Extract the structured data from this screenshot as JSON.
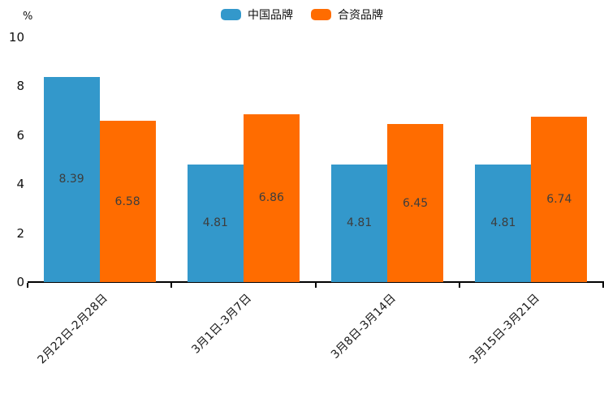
{
  "legend": [
    {
      "label": "中国品牌",
      "color": "#3398cb"
    },
    {
      "label": "合资品牌",
      "color": "#ff6c00"
    }
  ],
  "y_axis": {
    "unit": "%",
    "ticks": [
      0,
      2,
      4,
      6,
      8,
      10
    ]
  },
  "chart_data": {
    "type": "bar",
    "categories": [
      "2月22日-2月28日",
      "3月1日-3月7日",
      "3月8日-3月14日",
      "3月15日-3月21日"
    ],
    "series": [
      {
        "name": "中国品牌",
        "color": "#3398cb",
        "values": [
          8.39,
          4.81,
          4.81,
          4.81
        ]
      },
      {
        "name": "合资品牌",
        "color": "#ff6c00",
        "values": [
          6.58,
          6.86,
          6.45,
          6.74
        ]
      }
    ],
    "title": "",
    "xlabel": "",
    "ylabel": "%",
    "ylim": [
      0,
      10
    ],
    "grid": false,
    "legend_position": "top",
    "value_labels": "centered-inside-bars"
  }
}
